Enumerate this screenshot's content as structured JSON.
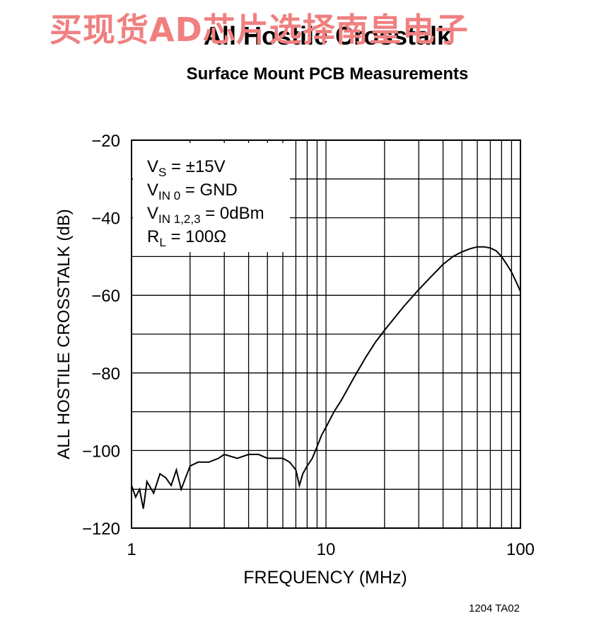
{
  "watermark": "买现货AD芯片选择南皇电子",
  "figure_id": "1204 TA02",
  "chart_data": {
    "type": "line",
    "title": "All Hostile Crosstalk",
    "subtitle": "Surface Mount PCB Measurements",
    "xlabel": "FREQUENCY (MHz)",
    "ylabel": "ALL HOSTILE CROSSTALK (dB)",
    "xscale": "log",
    "xlim": [
      1,
      100
    ],
    "ylim": [
      -120,
      -20
    ],
    "x_tick_labels": [
      "1",
      "10",
      "100"
    ],
    "y_tick_labels": [
      "−20",
      "−40",
      "−60",
      "−80",
      "−100",
      "−120"
    ],
    "y_ticks": [
      -20,
      -40,
      -60,
      -80,
      -100,
      -120
    ],
    "grid": true,
    "annotations": [
      {
        "main": "V",
        "sub": "S",
        "rest": " = ±15V"
      },
      {
        "main": "V",
        "sub": "IN 0",
        "rest": " = GND"
      },
      {
        "main": "V",
        "sub": "IN 1,2,3",
        "rest": " = 0dBm"
      },
      {
        "main": "R",
        "sub": "L",
        "rest": " = 100Ω"
      }
    ],
    "series": [
      {
        "x": [
          1.0,
          1.05,
          1.1,
          1.15,
          1.2,
          1.3,
          1.4,
          1.5,
          1.6,
          1.7,
          1.8,
          2.0,
          2.2,
          2.5,
          2.8,
          3.0,
          3.5,
          4.0,
          4.5,
          5.0,
          5.5,
          6.0,
          6.5,
          7.0,
          7.3,
          7.6,
          8.0,
          8.5,
          9.0,
          9.5,
          10,
          11,
          12,
          14,
          16,
          18,
          20,
          25,
          30,
          35,
          40,
          45,
          50,
          55,
          60,
          65,
          70,
          75,
          80,
          85,
          90,
          95,
          100
        ],
        "y": [
          -109,
          -112,
          -110,
          -115,
          -108,
          -111,
          -106,
          -107,
          -109,
          -105,
          -110,
          -104,
          -103,
          -103,
          -102,
          -101,
          -102,
          -101,
          -101,
          -102,
          -102,
          -102,
          -103,
          -105,
          -109,
          -106,
          -104,
          -102,
          -99,
          -96,
          -94,
          -90,
          -87,
          -81,
          -76,
          -72,
          -69,
          -63,
          -58.5,
          -55,
          -52,
          -50,
          -48.8,
          -48,
          -47.5,
          -47.5,
          -47.8,
          -48.5,
          -50,
          -52,
          -54,
          -56.5,
          -59
        ]
      }
    ]
  }
}
